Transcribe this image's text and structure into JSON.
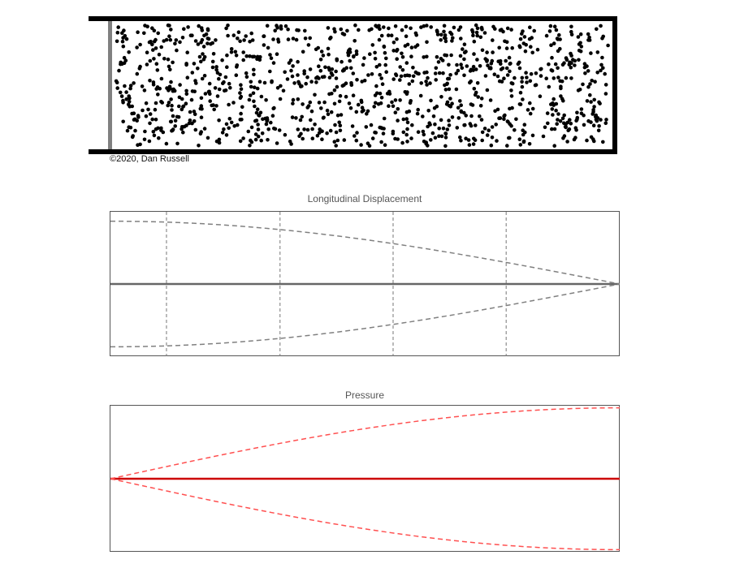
{
  "copyright": "©2020, Dan Russell",
  "tube": {
    "wall_color": "#000000",
    "piston_color": "#808080",
    "particle_color": "#000000",
    "end_condition_left": "open",
    "end_condition_right": "closed"
  },
  "chart_data": [
    {
      "type": "line",
      "title": "Longitudinal Displacement",
      "xlabel": "",
      "ylabel": "",
      "xlim": [
        0,
        1
      ],
      "ylim": [
        -1.15,
        1.15
      ],
      "grid": "vertical-dashed",
      "gridlines_x": [
        0.11,
        0.333,
        0.555,
        0.777
      ],
      "series": [
        {
          "style": "solid",
          "color": "#666666",
          "function": "zero"
        },
        {
          "style": "dashed",
          "color": "#808080",
          "function": "cos_quarter_positive",
          "amplitude": 1
        },
        {
          "style": "dashed",
          "color": "#808080",
          "function": "cos_quarter_negative",
          "amplitude": -1
        }
      ]
    },
    {
      "type": "line",
      "title": "Pressure",
      "xlabel": "",
      "ylabel": "",
      "xlim": [
        0,
        1
      ],
      "ylim": [
        -1.03,
        1.03
      ],
      "grid": "none",
      "series": [
        {
          "style": "solid",
          "color": "#cc0000",
          "function": "zero"
        },
        {
          "style": "dashed",
          "color": "#ff5050",
          "function": "sin_quarter_positive",
          "amplitude": 1
        },
        {
          "style": "dashed",
          "color": "#ff5050",
          "function": "sin_quarter_negative",
          "amplitude": -1
        }
      ]
    }
  ]
}
